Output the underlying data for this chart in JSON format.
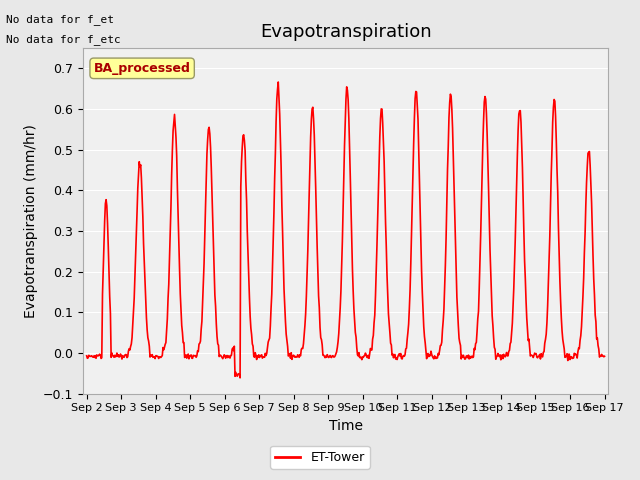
{
  "title": "Evapotranspiration",
  "ylabel": "Evapotranspiration (mm/hr)",
  "xlabel": "Time",
  "ylim": [
    -0.1,
    0.75
  ],
  "yticks": [
    -0.1,
    0.0,
    0.1,
    0.2,
    0.3,
    0.4,
    0.5,
    0.6,
    0.7
  ],
  "line_color": "#ff0000",
  "line_width": 1.2,
  "bg_color": "#e8e8e8",
  "plot_bg_color": "#f0f0f0",
  "annotation_text1": "No data for f_et",
  "annotation_text2": "No data for f_etc",
  "box_label": "BA_processed",
  "legend_label": "ET-Tower",
  "n_days": 15,
  "title_fontsize": 13,
  "axis_fontsize": 10,
  "tick_fontsize": 9,
  "daily_peaks": [
    0.38,
    0.47,
    0.58,
    0.56,
    0.54,
    0.66,
    0.6,
    0.65,
    0.6,
    0.65,
    0.64,
    0.63,
    0.6,
    0.62,
    0.5
  ],
  "peak_hours": [
    13.0,
    13.0,
    13.0,
    13.0,
    13.0,
    13.0,
    13.0,
    13.0,
    13.0,
    13.0,
    13.0,
    13.0,
    13.0,
    13.0,
    13.0
  ],
  "peak_widths": [
    2.0,
    2.5,
    2.5,
    2.5,
    2.5,
    2.5,
    2.5,
    2.5,
    2.5,
    2.5,
    2.5,
    2.5,
    2.5,
    2.5,
    2.5
  ]
}
